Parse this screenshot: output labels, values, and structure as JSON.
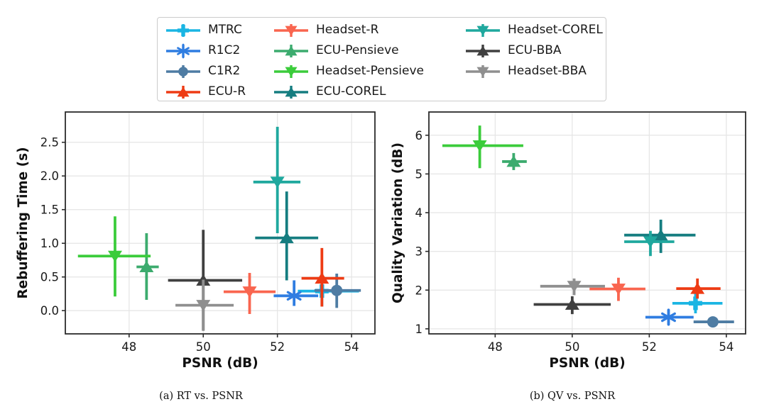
{
  "figure": {
    "background": "#ffffff"
  },
  "legend": {
    "border_color": "#cccccc",
    "columns": [
      [
        "MTRC",
        "R1C2",
        "C1R2",
        "ECU-R"
      ],
      [
        "Headset-R",
        "ECU-Pensieve",
        "Headset-Pensieve",
        "ECU-COREL"
      ],
      [
        "Headset-COREL",
        "ECU-BBA",
        "Headset-BBA"
      ]
    ]
  },
  "methods": [
    {
      "name": "MTRC",
      "color": "#1ab5e3",
      "marker": "plus"
    },
    {
      "name": "R1C2",
      "color": "#2f7de1",
      "marker": "asterisk"
    },
    {
      "name": "C1R2",
      "color": "#4e7ca3",
      "marker": "circle"
    },
    {
      "name": "ECU-R",
      "color": "#ee3b14",
      "marker": "triangle-up"
    },
    {
      "name": "Headset-R",
      "color": "#f9654f",
      "marker": "triangle-down"
    },
    {
      "name": "ECU-Pensieve",
      "color": "#3cab6e",
      "marker": "triangle-up"
    },
    {
      "name": "Headset-Pensieve",
      "color": "#3bcc3b",
      "marker": "triangle-down"
    },
    {
      "name": "ECU-COREL",
      "color": "#157d80",
      "marker": "triangle-up"
    },
    {
      "name": "Headset-COREL",
      "color": "#1fa89e",
      "marker": "triangle-down"
    },
    {
      "name": "ECU-BBA",
      "color": "#404040",
      "marker": "triangle-up"
    },
    {
      "name": "Headset-BBA",
      "color": "#8f8f8f",
      "marker": "triangle-down"
    }
  ],
  "chart_data": [
    {
      "type": "scatter",
      "subtype": "errorbar",
      "title": "",
      "caption": "(a) RT vs. PSNR",
      "xlabel": "PSNR (dB)",
      "ylabel": "Rebuffering Time (s)",
      "xlim": [
        46.28,
        54.63
      ],
      "ylim": [
        -0.345,
        2.95
      ],
      "xticks": [
        48,
        50,
        52,
        54
      ],
      "xtick_labels": [
        "48",
        "50",
        "52",
        "54"
      ],
      "yticks": [
        0.0,
        0.5,
        1.0,
        1.5,
        2.0,
        2.5
      ],
      "ytick_labels": [
        "0.0",
        "0.5",
        "1.0",
        "1.5",
        "2.0",
        "2.5"
      ],
      "grid": true,
      "legend_position": "figure-top",
      "points": [
        {
          "name": "MTRC",
          "x": 53.2,
          "y": 0.29,
          "xerr": [
            52.55,
            54.2
          ],
          "yerr": [
            0.06,
            0.55
          ]
        },
        {
          "name": "R1C2",
          "x": 52.45,
          "y": 0.22,
          "xerr": [
            51.9,
            53.1
          ],
          "yerr": [
            0.07,
            0.45
          ]
        },
        {
          "name": "C1R2",
          "x": 53.6,
          "y": 0.3,
          "xerr": [
            53.0,
            54.25
          ],
          "yerr": [
            0.04,
            0.55
          ]
        },
        {
          "name": "ECU-R",
          "x": 53.2,
          "y": 0.48,
          "xerr": [
            52.65,
            53.8
          ],
          "yerr": [
            0.06,
            0.93
          ]
        },
        {
          "name": "Headset-R",
          "x": 51.25,
          "y": 0.28,
          "xerr": [
            50.55,
            51.95
          ],
          "yerr": [
            -0.05,
            0.56
          ]
        },
        {
          "name": "ECU-Pensieve",
          "x": 48.47,
          "y": 0.65,
          "xerr": [
            48.2,
            48.8
          ],
          "yerr": [
            0.16,
            1.15
          ]
        },
        {
          "name": "Headset-Pensieve",
          "x": 47.62,
          "y": 0.81,
          "xerr": [
            46.62,
            48.58
          ],
          "yerr": [
            0.21,
            1.4
          ]
        },
        {
          "name": "ECU-COREL",
          "x": 52.25,
          "y": 1.08,
          "xerr": [
            51.4,
            53.1
          ],
          "yerr": [
            0.45,
            1.77
          ]
        },
        {
          "name": "Headset-COREL",
          "x": 52.0,
          "y": 1.91,
          "xerr": [
            51.35,
            52.62
          ],
          "yerr": [
            1.15,
            2.73
          ]
        },
        {
          "name": "ECU-BBA",
          "x": 50.0,
          "y": 0.45,
          "xerr": [
            49.05,
            51.05
          ],
          "yerr": [
            -0.29,
            1.2
          ]
        },
        {
          "name": "Headset-BBA",
          "x": 50.0,
          "y": 0.08,
          "xerr": [
            49.25,
            50.82
          ],
          "yerr": [
            -0.3,
            0.46
          ]
        }
      ]
    },
    {
      "type": "scatter",
      "subtype": "errorbar",
      "title": "",
      "caption": "(b) QV vs. PSNR",
      "xlabel": "PSNR (dB)",
      "ylabel": "Quality Variation (dB)",
      "xlim": [
        46.28,
        54.5
      ],
      "ylim": [
        0.87,
        6.6
      ],
      "xticks": [
        48,
        50,
        52,
        54
      ],
      "xtick_labels": [
        "48",
        "50",
        "52",
        "54"
      ],
      "yticks": [
        1,
        2,
        3,
        4,
        5,
        6
      ],
      "ytick_labels": [
        "1",
        "2",
        "3",
        "4",
        "5",
        "6"
      ],
      "grid": true,
      "legend_position": "figure-top",
      "points": [
        {
          "name": "MTRC",
          "x": 53.2,
          "y": 1.66,
          "xerr": [
            52.6,
            53.9
          ],
          "yerr": [
            1.4,
            1.92
          ]
        },
        {
          "name": "R1C2",
          "x": 52.5,
          "y": 1.3,
          "xerr": [
            51.9,
            53.15
          ],
          "yerr": [
            1.1,
            1.5
          ]
        },
        {
          "name": "C1R2",
          "x": 53.65,
          "y": 1.18,
          "xerr": [
            53.15,
            54.2
          ],
          "yerr": [
            1.06,
            1.3
          ]
        },
        {
          "name": "ECU-R",
          "x": 53.25,
          "y": 2.04,
          "xerr": [
            52.7,
            53.85
          ],
          "yerr": [
            1.78,
            2.3
          ]
        },
        {
          "name": "Headset-R",
          "x": 51.2,
          "y": 2.03,
          "xerr": [
            50.45,
            51.9
          ],
          "yerr": [
            1.72,
            2.32
          ]
        },
        {
          "name": "ECU-Pensieve",
          "x": 48.48,
          "y": 5.32,
          "xerr": [
            48.18,
            48.82
          ],
          "yerr": [
            5.1,
            5.54
          ]
        },
        {
          "name": "Headset-Pensieve",
          "x": 47.6,
          "y": 5.73,
          "xerr": [
            46.63,
            48.73
          ],
          "yerr": [
            5.15,
            6.25
          ]
        },
        {
          "name": "ECU-COREL",
          "x": 52.3,
          "y": 3.42,
          "xerr": [
            51.35,
            53.2
          ],
          "yerr": [
            2.96,
            3.82
          ]
        },
        {
          "name": "Headset-COREL",
          "x": 52.03,
          "y": 3.25,
          "xerr": [
            51.35,
            52.65
          ],
          "yerr": [
            2.88,
            3.53
          ]
        },
        {
          "name": "ECU-BBA",
          "x": 50.0,
          "y": 1.63,
          "xerr": [
            49.0,
            51.0
          ],
          "yerr": [
            1.38,
            1.84
          ]
        },
        {
          "name": "Headset-BBA",
          "x": 50.05,
          "y": 2.1,
          "xerr": [
            49.17,
            50.85
          ],
          "yerr": [
            1.87,
            2.3
          ]
        }
      ]
    }
  ],
  "style": {
    "grid_color": "#e5e5e5",
    "spine_color": "#2b2b2b",
    "tick_label_color": "#1a1a1a",
    "axis_label_color": "#111111"
  }
}
